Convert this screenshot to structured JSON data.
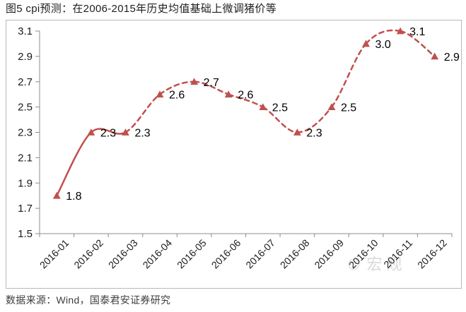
{
  "title": "图5 cpi预测：在2006-2015年历史均值基础上微调猪价等",
  "source_note": "数据来源：Wind，国泰君安证券研究",
  "watermark": {
    "icon": "smiley-face",
    "text": "宏观"
  },
  "colors": {
    "line": "#C0504D",
    "axis": "#8C8C8C",
    "tick_label": "#1A1A1A",
    "data_label": "#000000",
    "border": "#B9B9B9",
    "watermark": "#D9D9D9",
    "title": "#1F1F1F",
    "source": "#3D3D3D"
  },
  "chart_data": {
    "type": "line",
    "title": "图5 cpi预测：在2006-2015年历史均值基础上微调猪价等",
    "x": [
      "2016-01",
      "2016-02",
      "2016-03",
      "2016-04",
      "2016-05",
      "2016-06",
      "2016-07",
      "2016-08",
      "2016-09",
      "2016-10",
      "2016-11",
      "2016-12"
    ],
    "series": [
      {
        "name": "cpi预测",
        "values": [
          1.8,
          2.3,
          2.3,
          2.6,
          2.7,
          2.6,
          2.5,
          2.3,
          2.5,
          3.0,
          3.1,
          2.9
        ],
        "data_labels": [
          "1.8",
          "2.3",
          "2.3",
          "2.6",
          "2.7",
          "2.6",
          "2.5",
          "2.3",
          "2.5",
          "3.0",
          "3.1",
          "2.9"
        ],
        "marker": "triangle",
        "actual_point_count": 3,
        "line_style": "smoothed; solid through 2016-03, dashed forecast after"
      }
    ],
    "xlabel": "",
    "ylabel": "",
    "ylim": [
      1.5,
      3.1
    ],
    "y_ticks": [
      "1.5",
      "1.7",
      "1.9",
      "2.1",
      "2.3",
      "2.5",
      "2.7",
      "2.9",
      "3.1"
    ],
    "x_tick_rotation": -45,
    "grid": false,
    "legend": "none"
  }
}
